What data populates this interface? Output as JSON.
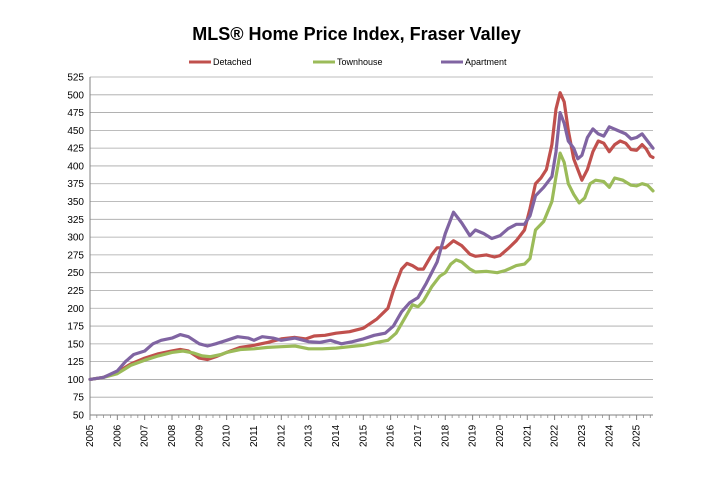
{
  "chart_data": {
    "type": "line",
    "title": "MLS® Home Price Index, Fraser Valley",
    "xlabel": "",
    "ylabel": "",
    "xlim": [
      2005,
      2025.6
    ],
    "ylim": [
      50,
      525
    ],
    "y_ticks": [
      50,
      75,
      100,
      125,
      150,
      175,
      200,
      225,
      250,
      275,
      300,
      325,
      350,
      375,
      400,
      425,
      450,
      475,
      500,
      525
    ],
    "x_ticks": [
      "2005",
      "2006",
      "2007",
      "2008",
      "2009",
      "2010",
      "2011",
      "2012",
      "2013",
      "2014",
      "2015",
      "2016",
      "2017",
      "2018",
      "2019",
      "2020",
      "2021",
      "2022",
      "2023",
      "2024",
      "2025"
    ],
    "grid": true,
    "legend_position": "top",
    "series": [
      {
        "name": "Detached",
        "color": "#c0504d",
        "points": [
          [
            2005,
            100
          ],
          [
            2005.5,
            103
          ],
          [
            2006,
            110
          ],
          [
            2006.5,
            122
          ],
          [
            2007,
            130
          ],
          [
            2007.5,
            136
          ],
          [
            2008,
            140
          ],
          [
            2008.3,
            142
          ],
          [
            2008.6,
            140
          ],
          [
            2009,
            130
          ],
          [
            2009.3,
            128
          ],
          [
            2009.6,
            132
          ],
          [
            2010,
            138
          ],
          [
            2010.5,
            145
          ],
          [
            2011,
            148
          ],
          [
            2011.5,
            152
          ],
          [
            2012,
            157
          ],
          [
            2012.5,
            159
          ],
          [
            2012.9,
            157
          ],
          [
            2013.2,
            161
          ],
          [
            2013.6,
            162
          ],
          [
            2014,
            165
          ],
          [
            2014.5,
            167
          ],
          [
            2015,
            172
          ],
          [
            2015.5,
            185
          ],
          [
            2015.9,
            200
          ],
          [
            2016.1,
            225
          ],
          [
            2016.4,
            255
          ],
          [
            2016.6,
            263
          ],
          [
            2016.8,
            260
          ],
          [
            2017,
            255
          ],
          [
            2017.2,
            255
          ],
          [
            2017.5,
            275
          ],
          [
            2017.7,
            285
          ],
          [
            2018,
            285
          ],
          [
            2018.3,
            295
          ],
          [
            2018.6,
            288
          ],
          [
            2018.9,
            276
          ],
          [
            2019.1,
            273
          ],
          [
            2019.5,
            275
          ],
          [
            2019.8,
            272
          ],
          [
            2020,
            274
          ],
          [
            2020.3,
            284
          ],
          [
            2020.6,
            295
          ],
          [
            2020.9,
            310
          ],
          [
            2021.1,
            340
          ],
          [
            2021.3,
            375
          ],
          [
            2021.5,
            383
          ],
          [
            2021.7,
            395
          ],
          [
            2021.9,
            430
          ],
          [
            2022.05,
            480
          ],
          [
            2022.2,
            503
          ],
          [
            2022.35,
            490
          ],
          [
            2022.5,
            450
          ],
          [
            2022.7,
            410
          ],
          [
            2022.85,
            395
          ],
          [
            2023,
            380
          ],
          [
            2023.2,
            395
          ],
          [
            2023.4,
            420
          ],
          [
            2023.6,
            435
          ],
          [
            2023.8,
            432
          ],
          [
            2024,
            420
          ],
          [
            2024.2,
            430
          ],
          [
            2024.4,
            435
          ],
          [
            2024.6,
            432
          ],
          [
            2024.8,
            423
          ],
          [
            2025,
            422
          ],
          [
            2025.2,
            430
          ],
          [
            2025.35,
            424
          ],
          [
            2025.5,
            414
          ],
          [
            2025.6,
            412
          ]
        ]
      },
      {
        "name": "Townhouse",
        "color": "#9bbb59",
        "points": [
          [
            2005,
            100
          ],
          [
            2005.5,
            103
          ],
          [
            2006,
            108
          ],
          [
            2006.5,
            120
          ],
          [
            2007,
            127
          ],
          [
            2007.5,
            133
          ],
          [
            2008,
            138
          ],
          [
            2008.4,
            140
          ],
          [
            2008.8,
            137
          ],
          [
            2009.1,
            133
          ],
          [
            2009.4,
            132
          ],
          [
            2009.8,
            135
          ],
          [
            2010,
            138
          ],
          [
            2010.5,
            142
          ],
          [
            2011,
            143
          ],
          [
            2011.5,
            145
          ],
          [
            2012,
            146
          ],
          [
            2012.5,
            147
          ],
          [
            2013,
            143
          ],
          [
            2013.5,
            143
          ],
          [
            2014,
            144
          ],
          [
            2014.5,
            146
          ],
          [
            2015,
            148
          ],
          [
            2015.5,
            152
          ],
          [
            2015.9,
            155
          ],
          [
            2016.2,
            165
          ],
          [
            2016.5,
            185
          ],
          [
            2016.8,
            205
          ],
          [
            2017,
            202
          ],
          [
            2017.2,
            210
          ],
          [
            2017.5,
            230
          ],
          [
            2017.8,
            245
          ],
          [
            2018,
            250
          ],
          [
            2018.2,
            262
          ],
          [
            2018.4,
            268
          ],
          [
            2018.6,
            265
          ],
          [
            2018.9,
            255
          ],
          [
            2019.1,
            251
          ],
          [
            2019.5,
            252
          ],
          [
            2019.9,
            250
          ],
          [
            2020.2,
            253
          ],
          [
            2020.6,
            260
          ],
          [
            2020.9,
            262
          ],
          [
            2021.1,
            270
          ],
          [
            2021.3,
            310
          ],
          [
            2021.6,
            322
          ],
          [
            2021.9,
            350
          ],
          [
            2022.05,
            385
          ],
          [
            2022.2,
            418
          ],
          [
            2022.35,
            405
          ],
          [
            2022.5,
            375
          ],
          [
            2022.7,
            360
          ],
          [
            2022.9,
            348
          ],
          [
            2023.1,
            355
          ],
          [
            2023.3,
            375
          ],
          [
            2023.5,
            380
          ],
          [
            2023.8,
            378
          ],
          [
            2024,
            370
          ],
          [
            2024.2,
            383
          ],
          [
            2024.5,
            380
          ],
          [
            2024.8,
            373
          ],
          [
            2025,
            372
          ],
          [
            2025.2,
            375
          ],
          [
            2025.4,
            373
          ],
          [
            2025.6,
            365
          ]
        ]
      },
      {
        "name": "Apartment",
        "color": "#8064a2",
        "points": [
          [
            2005,
            100
          ],
          [
            2005.5,
            103
          ],
          [
            2006,
            112
          ],
          [
            2006.3,
            125
          ],
          [
            2006.6,
            135
          ],
          [
            2007,
            140
          ],
          [
            2007.3,
            150
          ],
          [
            2007.6,
            155
          ],
          [
            2008,
            158
          ],
          [
            2008.3,
            163
          ],
          [
            2008.6,
            160
          ],
          [
            2009,
            150
          ],
          [
            2009.3,
            147
          ],
          [
            2009.6,
            150
          ],
          [
            2010,
            155
          ],
          [
            2010.4,
            160
          ],
          [
            2010.8,
            158
          ],
          [
            2011,
            155
          ],
          [
            2011.3,
            160
          ],
          [
            2011.7,
            158
          ],
          [
            2012,
            155
          ],
          [
            2012.5,
            158
          ],
          [
            2013,
            153
          ],
          [
            2013.4,
            152
          ],
          [
            2013.8,
            155
          ],
          [
            2014.2,
            150
          ],
          [
            2014.6,
            153
          ],
          [
            2015,
            157
          ],
          [
            2015.4,
            162
          ],
          [
            2015.8,
            165
          ],
          [
            2016.1,
            175
          ],
          [
            2016.4,
            195
          ],
          [
            2016.7,
            208
          ],
          [
            2017,
            215
          ],
          [
            2017.3,
            235
          ],
          [
            2017.7,
            265
          ],
          [
            2018,
            305
          ],
          [
            2018.3,
            335
          ],
          [
            2018.6,
            320
          ],
          [
            2018.9,
            302
          ],
          [
            2019.1,
            310
          ],
          [
            2019.4,
            305
          ],
          [
            2019.7,
            298
          ],
          [
            2020,
            302
          ],
          [
            2020.3,
            312
          ],
          [
            2020.6,
            318
          ],
          [
            2020.9,
            318
          ],
          [
            2021.1,
            330
          ],
          [
            2021.3,
            358
          ],
          [
            2021.6,
            370
          ],
          [
            2021.9,
            385
          ],
          [
            2022.05,
            420
          ],
          [
            2022.2,
            475
          ],
          [
            2022.35,
            460
          ],
          [
            2022.5,
            435
          ],
          [
            2022.7,
            425
          ],
          [
            2022.85,
            410
          ],
          [
            2023,
            415
          ],
          [
            2023.2,
            440
          ],
          [
            2023.4,
            452
          ],
          [
            2023.6,
            445
          ],
          [
            2023.8,
            442
          ],
          [
            2024,
            455
          ],
          [
            2024.3,
            450
          ],
          [
            2024.6,
            445
          ],
          [
            2024.8,
            438
          ],
          [
            2025,
            440
          ],
          [
            2025.2,
            445
          ],
          [
            2025.4,
            435
          ],
          [
            2025.6,
            425
          ]
        ]
      }
    ]
  }
}
